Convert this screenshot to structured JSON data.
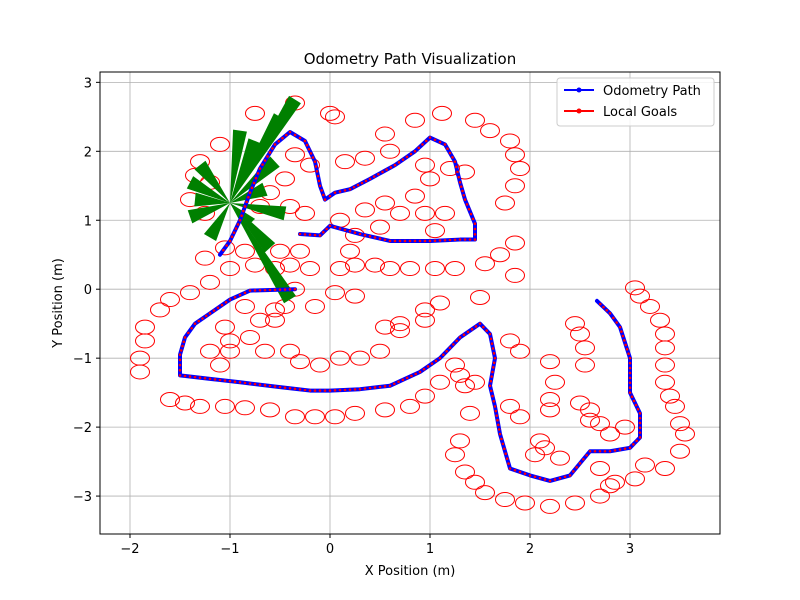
{
  "chart_data": {
    "type": "scatter",
    "title": "Odometry Path Visualization",
    "xlabel": "X Position (m)",
    "ylabel": "Y Position (m)",
    "xlim": [
      -2.3,
      3.9
    ],
    "ylim": [
      -3.55,
      3.15
    ],
    "xticks": [
      -2,
      -1,
      0,
      1,
      2,
      3
    ],
    "yticks": [
      -3,
      -2,
      -1,
      0,
      1,
      2,
      3
    ],
    "xtick_labels": [
      "−2",
      "−1",
      "0",
      "1",
      "2",
      "3"
    ],
    "ytick_labels": [
      "−3",
      "−2",
      "−1",
      "0",
      "1",
      "2",
      "3"
    ],
    "grid": true,
    "legend_position": "top-right",
    "colors": {
      "path": "#0000ff",
      "path_markers": "#ff0000",
      "goals": "#ff0000",
      "heading": "#008000"
    },
    "series": [
      {
        "name": "Odometry Path",
        "color": "#0000ff",
        "points": [
          [
            -0.35,
            0.0
          ],
          [
            -0.8,
            -0.02
          ],
          [
            -1.0,
            -0.15
          ],
          [
            -1.2,
            -0.35
          ],
          [
            -1.35,
            -0.5
          ],
          [
            -1.45,
            -0.7
          ],
          [
            -1.5,
            -0.95
          ],
          [
            -1.5,
            -1.25
          ],
          [
            -1.2,
            -1.3
          ],
          [
            -0.9,
            -1.35
          ],
          [
            -0.5,
            -1.42
          ],
          [
            -0.2,
            -1.47
          ],
          [
            0.0,
            -1.47
          ],
          [
            0.3,
            -1.45
          ],
          [
            0.6,
            -1.4
          ],
          [
            0.9,
            -1.2
          ],
          [
            1.1,
            -1.0
          ],
          [
            1.3,
            -0.7
          ],
          [
            1.5,
            -0.5
          ],
          [
            1.6,
            -0.65
          ],
          [
            1.65,
            -1.0
          ],
          [
            1.6,
            -1.4
          ],
          [
            1.65,
            -1.7
          ],
          [
            1.7,
            -2.1
          ],
          [
            1.8,
            -2.6
          ],
          [
            2.0,
            -2.7
          ],
          [
            2.2,
            -2.78
          ],
          [
            2.4,
            -2.7
          ],
          [
            2.6,
            -2.35
          ],
          [
            2.8,
            -2.35
          ],
          [
            3.0,
            -2.3
          ],
          [
            3.1,
            -2.15
          ],
          [
            3.1,
            -1.8
          ],
          [
            3.0,
            -1.5
          ],
          [
            3.0,
            -1.0
          ],
          [
            2.9,
            -0.55
          ],
          [
            2.8,
            -0.35
          ],
          [
            2.67,
            -0.17
          ]
        ]
      },
      {
        "name": "Odometry Path",
        "color": "#0000ff",
        "points": [
          [
            -0.3,
            0.8
          ],
          [
            -0.1,
            0.78
          ],
          [
            0.0,
            0.92
          ],
          [
            0.3,
            0.8
          ],
          [
            0.6,
            0.7
          ],
          [
            1.0,
            0.7
          ],
          [
            1.3,
            0.72
          ],
          [
            1.45,
            0.72
          ],
          [
            1.45,
            0.95
          ],
          [
            1.35,
            1.3
          ],
          [
            1.3,
            1.55
          ],
          [
            1.25,
            1.85
          ],
          [
            1.15,
            2.1
          ],
          [
            1.0,
            2.2
          ],
          [
            0.85,
            2.0
          ],
          [
            0.65,
            1.8
          ],
          [
            0.4,
            1.6
          ],
          [
            0.2,
            1.45
          ],
          [
            0.05,
            1.4
          ],
          [
            -0.05,
            1.3
          ],
          [
            -0.1,
            1.5
          ],
          [
            -0.15,
            1.85
          ],
          [
            -0.25,
            2.15
          ],
          [
            -0.4,
            2.28
          ],
          [
            -0.55,
            2.1
          ],
          [
            -0.7,
            1.75
          ],
          [
            -0.8,
            1.4
          ],
          [
            -0.9,
            1.0
          ],
          [
            -1.0,
            0.7
          ],
          [
            -1.1,
            0.5
          ]
        ]
      },
      {
        "name": "Local Goals",
        "color": "#ff0000",
        "points": [
          [
            -1.3,
            1.85
          ],
          [
            -1.35,
            1.65
          ],
          [
            -1.2,
            1.55
          ],
          [
            -1.4,
            1.3
          ],
          [
            -1.25,
            1.1
          ],
          [
            -1.1,
            2.1
          ],
          [
            -0.75,
            2.55
          ],
          [
            -0.35,
            2.7
          ],
          [
            0.0,
            2.55
          ],
          [
            0.05,
            2.5
          ],
          [
            0.55,
            2.25
          ],
          [
            0.85,
            2.45
          ],
          [
            1.12,
            2.55
          ],
          [
            1.45,
            2.45
          ],
          [
            1.6,
            2.3
          ],
          [
            1.8,
            2.15
          ],
          [
            1.85,
            1.95
          ],
          [
            1.9,
            1.75
          ],
          [
            1.85,
            1.5
          ],
          [
            1.75,
            1.25
          ],
          [
            1.85,
            0.67
          ],
          [
            1.55,
            0.37
          ],
          [
            1.5,
            -0.12
          ],
          [
            1.25,
            0.3
          ],
          [
            1.05,
            0.3
          ],
          [
            0.8,
            0.3
          ],
          [
            0.6,
            0.3
          ],
          [
            0.45,
            0.35
          ],
          [
            0.25,
            0.35
          ],
          [
            0.1,
            0.3
          ],
          [
            -0.2,
            0.3
          ],
          [
            -0.4,
            0.35
          ],
          [
            -0.55,
            0.3
          ],
          [
            -0.75,
            0.35
          ],
          [
            -1.0,
            0.3
          ],
          [
            -1.2,
            0.1
          ],
          [
            -1.4,
            -0.05
          ],
          [
            -1.6,
            -0.15
          ],
          [
            -1.7,
            -0.3
          ],
          [
            -1.85,
            -0.55
          ],
          [
            -1.85,
            -0.75
          ],
          [
            -1.9,
            -1.0
          ],
          [
            -1.9,
            -1.2
          ],
          [
            -1.6,
            -1.6
          ],
          [
            -1.45,
            -1.65
          ],
          [
            -1.3,
            -1.7
          ],
          [
            -1.05,
            -1.7
          ],
          [
            -0.85,
            -1.72
          ],
          [
            -0.6,
            -1.75
          ],
          [
            -0.35,
            -1.85
          ],
          [
            -0.15,
            -1.85
          ],
          [
            0.05,
            -1.85
          ],
          [
            0.25,
            -1.8
          ],
          [
            0.55,
            -1.75
          ],
          [
            0.8,
            -1.7
          ],
          [
            0.95,
            -1.55
          ],
          [
            1.1,
            -1.35
          ],
          [
            1.3,
            -1.25
          ],
          [
            1.35,
            -1.4
          ],
          [
            1.4,
            -1.8
          ],
          [
            1.3,
            -2.2
          ],
          [
            1.25,
            -2.4
          ],
          [
            1.35,
            -2.65
          ],
          [
            1.45,
            -2.8
          ],
          [
            1.55,
            -2.95
          ],
          [
            1.75,
            -3.05
          ],
          [
            1.95,
            -3.1
          ],
          [
            2.2,
            -3.15
          ],
          [
            2.45,
            -3.1
          ],
          [
            2.7,
            -3.0
          ],
          [
            2.85,
            -2.8
          ],
          [
            3.05,
            -2.75
          ],
          [
            3.15,
            -2.55
          ],
          [
            3.35,
            -2.6
          ],
          [
            3.5,
            -2.35
          ],
          [
            3.55,
            -2.1
          ],
          [
            3.5,
            -1.95
          ],
          [
            3.45,
            -1.7
          ],
          [
            3.4,
            -1.55
          ],
          [
            3.35,
            -1.35
          ],
          [
            3.35,
            -1.1
          ],
          [
            3.35,
            -0.85
          ],
          [
            3.35,
            -0.65
          ],
          [
            3.3,
            -0.45
          ],
          [
            3.2,
            -0.25
          ],
          [
            3.1,
            -0.1
          ],
          [
            3.05,
            0.02
          ],
          [
            -0.35,
            0.0
          ],
          [
            -0.55,
            -0.3
          ],
          [
            -0.7,
            -0.45
          ],
          [
            -0.8,
            -0.7
          ],
          [
            -1.0,
            -0.75
          ],
          [
            -1.0,
            -0.9
          ],
          [
            -1.2,
            -0.9
          ],
          [
            -1.1,
            -1.1
          ],
          [
            -0.65,
            -0.9
          ],
          [
            -0.4,
            -0.9
          ],
          [
            -0.3,
            -1.05
          ],
          [
            -0.1,
            -1.1
          ],
          [
            0.1,
            -1.0
          ],
          [
            0.3,
            -1.0
          ],
          [
            0.5,
            -0.9
          ],
          [
            0.7,
            -0.6
          ],
          [
            0.95,
            -0.45
          ],
          [
            1.1,
            -0.2
          ],
          [
            0.2,
            0.55
          ],
          [
            0.25,
            0.78
          ],
          [
            0.5,
            0.9
          ],
          [
            0.7,
            1.1
          ],
          [
            0.95,
            1.1
          ],
          [
            1.15,
            1.1
          ],
          [
            1.05,
            0.85
          ],
          [
            0.85,
            1.35
          ],
          [
            1.0,
            1.6
          ],
          [
            1.2,
            1.75
          ],
          [
            1.35,
            1.7
          ],
          [
            0.95,
            1.8
          ],
          [
            0.6,
            2.0
          ],
          [
            0.35,
            1.9
          ],
          [
            0.15,
            1.85
          ],
          [
            -0.2,
            1.8
          ],
          [
            -0.35,
            1.95
          ],
          [
            -0.45,
            1.6
          ],
          [
            -0.6,
            1.4
          ],
          [
            -0.7,
            1.2
          ],
          [
            -0.4,
            1.2
          ],
          [
            -0.25,
            1.1
          ],
          [
            0.1,
            1.0
          ],
          [
            0.35,
            1.15
          ],
          [
            0.55,
            1.25
          ],
          [
            -0.3,
            0.55
          ],
          [
            -0.5,
            0.55
          ],
          [
            -0.85,
            0.55
          ],
          [
            -1.05,
            0.6
          ],
          [
            -1.25,
            0.45
          ],
          [
            1.8,
            -0.75
          ],
          [
            1.9,
            -0.9
          ],
          [
            2.2,
            -1.05
          ],
          [
            2.25,
            -1.35
          ],
          [
            2.45,
            -0.5
          ],
          [
            2.5,
            -0.65
          ],
          [
            2.55,
            -0.85
          ],
          [
            2.55,
            -1.1
          ],
          [
            2.5,
            -1.65
          ],
          [
            2.6,
            -1.75
          ],
          [
            2.7,
            -1.95
          ],
          [
            2.8,
            -2.1
          ],
          [
            2.7,
            -2.6
          ],
          [
            2.8,
            -2.85
          ],
          [
            2.3,
            -2.45
          ],
          [
            2.15,
            -2.3
          ],
          [
            2.05,
            -2.4
          ],
          [
            2.1,
            -2.2
          ],
          [
            2.2,
            -1.75
          ],
          [
            2.2,
            -1.6
          ],
          [
            1.9,
            -1.85
          ],
          [
            1.8,
            -1.7
          ],
          [
            2.6,
            -1.9
          ],
          [
            2.95,
            -2.0
          ],
          [
            -0.15,
            -0.25
          ],
          [
            -0.45,
            -0.25
          ],
          [
            -0.85,
            -0.25
          ],
          [
            -0.55,
            -0.45
          ],
          [
            -1.05,
            -0.55
          ],
          [
            0.05,
            -0.05
          ],
          [
            0.25,
            -0.1
          ],
          [
            0.55,
            -0.55
          ],
          [
            0.7,
            -0.5
          ],
          [
            0.95,
            -0.3
          ],
          [
            1.25,
            -1.1
          ],
          [
            1.45,
            -1.35
          ],
          [
            1.85,
            0.2
          ],
          [
            1.7,
            0.5
          ]
        ]
      }
    ],
    "heading": {
      "color": "#008000",
      "origin": [
        -1.0,
        1.25
      ],
      "tips": [
        [
          -0.5,
          2.5
        ],
        [
          -0.35,
          2.75
        ],
        [
          -0.4,
          -0.15
        ],
        [
          -0.6,
          0.6
        ],
        [
          -1.4,
          1.55
        ],
        [
          -1.4,
          1.05
        ],
        [
          -1.3,
          1.8
        ],
        [
          -0.55,
          1.85
        ],
        [
          -0.65,
          1.45
        ],
        [
          -0.45,
          1.1
        ],
        [
          -0.8,
          0.95
        ],
        [
          -1.2,
          0.75
        ],
        [
          -0.75,
          2.15
        ],
        [
          -0.9,
          2.3
        ],
        [
          -1.35,
          1.3
        ]
      ]
    },
    "legend": [
      {
        "label": "Odometry Path",
        "color": "#0000ff",
        "marker": "#0000ff"
      },
      {
        "label": "Local Goals",
        "color": "#ff0000",
        "marker": "#ff0000"
      }
    ]
  }
}
